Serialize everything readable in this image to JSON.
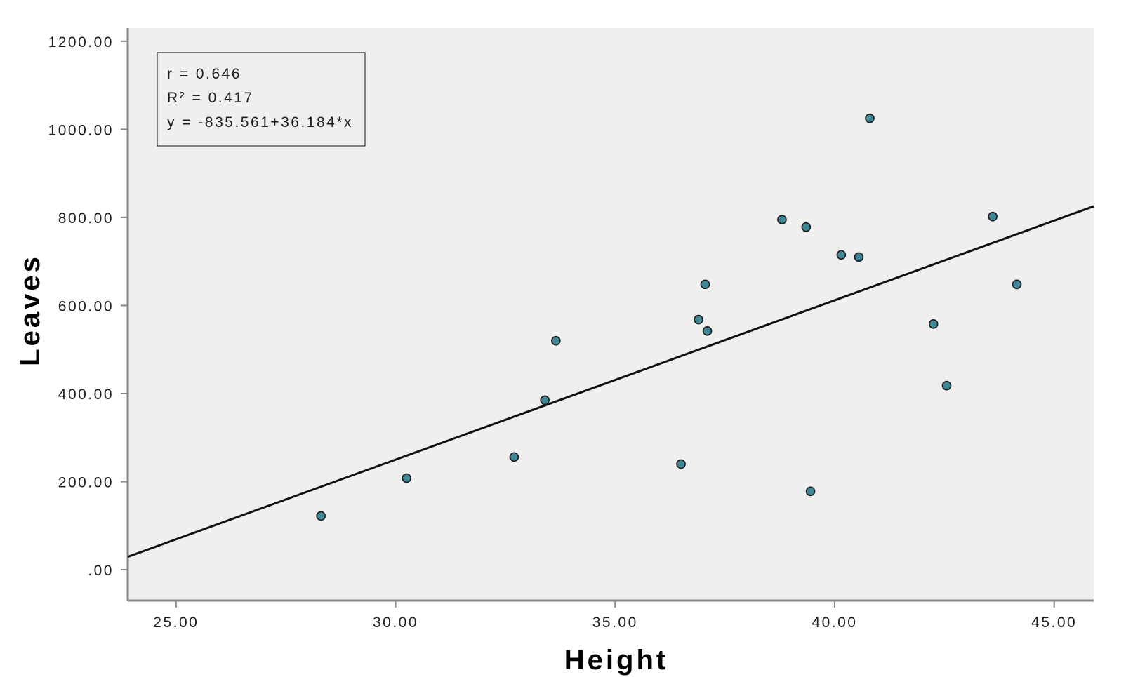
{
  "chart_data": {
    "type": "scatter",
    "title": "",
    "xlabel": "Height",
    "ylabel": "Leaves",
    "xlim": [
      23.9,
      45.9
    ],
    "ylim": [
      -70,
      1230
    ],
    "x_ticks": [
      25,
      30,
      35,
      40,
      45
    ],
    "x_tick_labels": [
      "25.00",
      "30.00",
      "35.00",
      "40.00",
      "45.00"
    ],
    "y_ticks": [
      0,
      200,
      400,
      600,
      800,
      1000,
      1200
    ],
    "y_tick_labels": [
      ".00",
      "200.00",
      "400.00",
      "600.00",
      "800.00",
      "1000.00",
      "1200.00"
    ],
    "grid": false,
    "points": [
      {
        "x": 28.3,
        "y": 122
      },
      {
        "x": 30.25,
        "y": 208
      },
      {
        "x": 32.7,
        "y": 256
      },
      {
        "x": 33.4,
        "y": 385
      },
      {
        "x": 33.65,
        "y": 520
      },
      {
        "x": 36.5,
        "y": 240
      },
      {
        "x": 36.9,
        "y": 568
      },
      {
        "x": 37.05,
        "y": 648
      },
      {
        "x": 37.1,
        "y": 542
      },
      {
        "x": 38.8,
        "y": 795
      },
      {
        "x": 39.35,
        "y": 778
      },
      {
        "x": 39.45,
        "y": 178
      },
      {
        "x": 40.15,
        "y": 715
      },
      {
        "x": 40.55,
        "y": 710
      },
      {
        "x": 40.8,
        "y": 1025
      },
      {
        "x": 42.25,
        "y": 558
      },
      {
        "x": 42.55,
        "y": 418
      },
      {
        "x": 43.6,
        "y": 802
      },
      {
        "x": 44.15,
        "y": 648
      }
    ],
    "fit_line": {
      "intercept": -835.561,
      "slope": 36.184
    },
    "annotation": {
      "lines": [
        "r = 0.646",
        "R² = 0.417",
        "y = -835.561+36.184*x"
      ],
      "placement": "top-left"
    },
    "colors": {
      "plot_background": "#efefef",
      "marker_fill": "#3f8796",
      "marker_stroke": "#1a1a1a",
      "fit_line": "#111111",
      "axis": "#888888"
    }
  }
}
